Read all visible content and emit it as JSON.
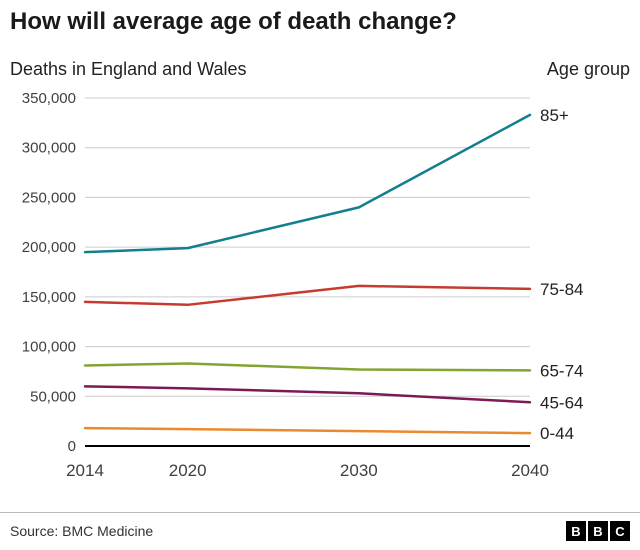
{
  "title": "How will average age of death change?",
  "subtitle_left": "Deaths in England and Wales",
  "subtitle_right": "Age group",
  "footer": {
    "source": "Source: BMC Medicine",
    "logo_letters": [
      "B",
      "B",
      "C"
    ]
  },
  "colors": {
    "grid": "#cccccc",
    "axis_zero_line": "#000000",
    "tick_text": "#404040",
    "series_label_text": "#222222"
  },
  "chart_data": {
    "type": "line",
    "x": [
      2014,
      2020,
      2030,
      2040
    ],
    "x_tick_labels": [
      "2014",
      "2020",
      "2030",
      "2040"
    ],
    "series": [
      {
        "name": "85+",
        "color": "#137e8f",
        "values": [
          195000,
          199000,
          240000,
          333000
        ]
      },
      {
        "name": "75-84",
        "color": "#c33c2e",
        "values": [
          145000,
          142000,
          161000,
          158000
        ]
      },
      {
        "name": "65-74",
        "color": "#84a333",
        "values": [
          81000,
          83000,
          77000,
          76000
        ]
      },
      {
        "name": "45-64",
        "color": "#7c1a56",
        "values": [
          60000,
          58000,
          53000,
          44000
        ]
      },
      {
        "name": "0-44",
        "color": "#ea8a2e",
        "values": [
          18000,
          17000,
          15000,
          13000
        ]
      }
    ],
    "ylim": [
      0,
      350000
    ],
    "ytick_step": 50000,
    "grid": true,
    "legend_position": "right-of-line-ends"
  }
}
